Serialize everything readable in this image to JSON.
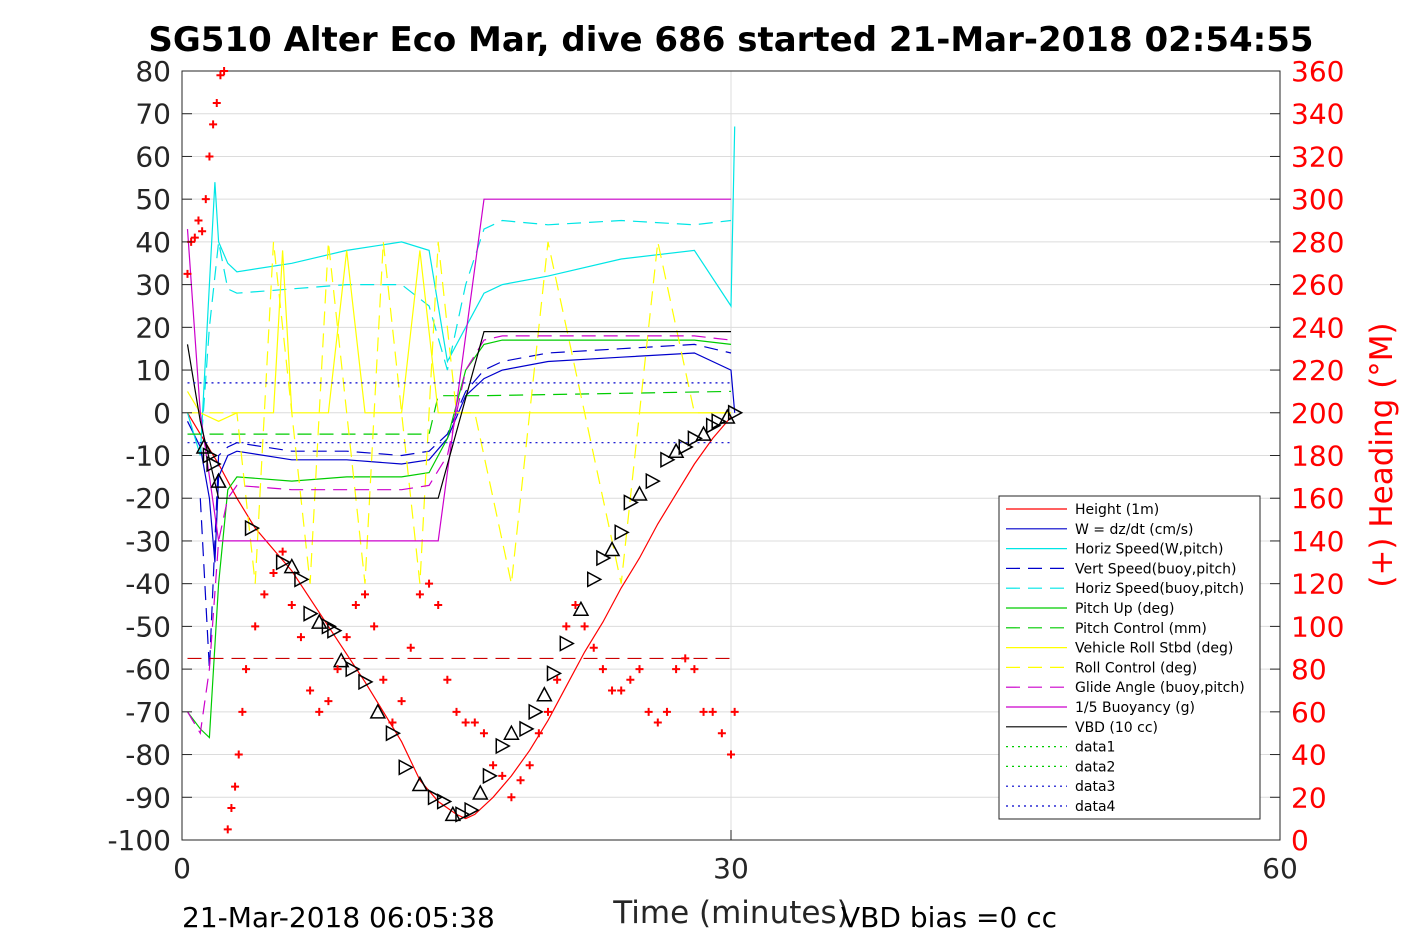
{
  "chart_data": {
    "type": "line",
    "title": "SG510 Alter Eco Mar, dive 686 started 21-Mar-2018 02:54:55",
    "xlabel": "Time (minutes)",
    "ylabel": "",
    "y2label": "(+) Heading (°M)",
    "xlim": [
      0,
      60
    ],
    "ylim": [
      -100,
      80
    ],
    "y2lim": [
      0,
      360
    ],
    "grid": true,
    "legend_position": "lower-right",
    "x_ticks": [
      "0",
      "30",
      "60"
    ],
    "y_ticks": [
      "80",
      "70",
      "60",
      "50",
      "40",
      "30",
      "20",
      "10",
      "0",
      "-10",
      "-20",
      "-30",
      "-40",
      "-50",
      "-60",
      "-70",
      "-80",
      "-90",
      "-100"
    ],
    "y2_ticks": [
      "360",
      "340",
      "320",
      "300",
      "280",
      "260",
      "240",
      "220",
      "200",
      "180",
      "160",
      "140",
      "120",
      "100",
      "80",
      "60",
      "40",
      "20",
      "0"
    ],
    "colors": {
      "height": "#ff0000",
      "w": "#0000cc",
      "horiz_w": "#00e6e6",
      "vert_buoy": "#0000cc",
      "horiz_buoy": "#00e6e6",
      "pitch": "#00cc00",
      "pitch_ctrl": "#00cc00",
      "roll": "#ffff00",
      "roll_ctrl": "#ffff00",
      "glide": "#cc00cc",
      "buoy": "#cc00cc",
      "vbd": "#000000",
      "heading": "#ff0000"
    },
    "series": [
      {
        "name": "Height (1m)",
        "x": [
          0.3,
          1,
          2,
          3,
          4,
          6,
          8,
          10,
          12,
          13,
          14,
          15,
          15.5,
          16,
          17,
          18,
          19,
          20,
          21,
          22,
          23,
          24,
          25,
          26,
          27,
          28,
          29,
          30
        ],
        "y": [
          0,
          -5,
          -12,
          -20,
          -27,
          -37,
          -50,
          -63,
          -77,
          -86,
          -91,
          -94,
          -95,
          -94,
          -90,
          -85,
          -79,
          -72,
          -64,
          -56,
          -49,
          -41,
          -34,
          -26,
          -19,
          -12,
          -6,
          -1
        ]
      },
      {
        "name": "W = dz/dt (cm/s)",
        "x": [
          0.3,
          1,
          1.5,
          1.8,
          2,
          2.5,
          3,
          6,
          9,
          12,
          13.5,
          14.5,
          15.5,
          16.5,
          17.5,
          20,
          24,
          28,
          30,
          30.2
        ],
        "y": [
          -2,
          -8,
          -20,
          -35,
          -15,
          -10,
          -9,
          -11,
          -11,
          -12,
          -11,
          -6,
          4,
          8,
          10,
          12,
          13,
          14,
          10,
          0
        ]
      },
      {
        "name": "Horiz Speed(W,pitch)",
        "x": [
          0.3,
          1,
          1.5,
          1.8,
          2,
          2.5,
          3,
          6,
          9,
          12,
          13.5,
          14.5,
          15.5,
          16.5,
          17.5,
          20,
          24,
          28,
          30,
          30.2
        ],
        "y": [
          0,
          -10,
          30,
          54,
          40,
          35,
          33,
          35,
          38,
          40,
          38,
          12,
          20,
          28,
          30,
          32,
          36,
          38,
          25,
          67
        ]
      },
      {
        "name": "Vert Speed(buoy,pitch)",
        "x": [
          1,
          1.5,
          2,
          2.5,
          3,
          6,
          9,
          12,
          13.5,
          14.5,
          15.5,
          16.5,
          17.5,
          20,
          24,
          28,
          30
        ],
        "y": [
          -20,
          -60,
          -10,
          -8,
          -7,
          -9,
          -9,
          -10,
          -9,
          -5,
          5,
          10,
          12,
          14,
          15,
          16,
          14
        ]
      },
      {
        "name": "Horiz Speed(buoy,pitch)",
        "x": [
          1,
          1.5,
          2,
          2.5,
          3,
          6,
          9,
          12,
          13.5,
          14.5,
          15.5,
          16.5,
          17.5,
          20,
          24,
          28,
          30
        ],
        "y": [
          -10,
          20,
          40,
          29,
          28,
          29,
          30,
          30,
          25,
          10,
          30,
          43,
          45,
          44,
          45,
          44,
          45
        ]
      },
      {
        "name": "Pitch Up (deg)",
        "x": [
          0.3,
          1,
          1.5,
          2,
          2.5,
          3,
          6,
          9,
          12,
          13.5,
          14.5,
          15.5,
          16.5,
          17.5,
          20,
          24,
          28,
          30
        ],
        "y": [
          -70,
          -74,
          -76,
          -40,
          -18,
          -15,
          -16,
          -15,
          -15,
          -14,
          -6,
          10,
          16,
          17,
          17,
          17,
          17,
          16
        ]
      },
      {
        "name": "Pitch Control (mm)",
        "x": [
          0.3,
          2,
          3,
          13,
          13.5,
          14,
          16.5,
          30
        ],
        "y": [
          -5,
          -5,
          -5,
          -5,
          -5,
          4,
          4,
          5
        ]
      },
      {
        "name": "Vehicle Roll Stbd (deg)",
        "x": [
          0.3,
          1,
          2,
          3,
          4,
          5,
          5.5,
          6,
          7,
          8,
          9,
          10,
          11,
          12,
          13,
          14,
          16,
          18,
          20,
          22,
          24,
          26,
          28,
          30
        ],
        "y": [
          5,
          0,
          -2,
          0,
          0,
          0,
          38,
          0,
          0,
          0,
          38,
          0,
          0,
          0,
          38,
          0,
          0,
          0,
          0,
          0,
          0,
          0,
          0,
          0
        ]
      },
      {
        "name": "Roll Control (deg)",
        "x": [
          0.3,
          2,
          3,
          4,
          5,
          6,
          7,
          8,
          9,
          10,
          11,
          12,
          13,
          14,
          15,
          16,
          18,
          20,
          22,
          24,
          26,
          28,
          30
        ],
        "y": [
          0,
          0,
          0,
          -40,
          40,
          0,
          -40,
          40,
          0,
          -40,
          40,
          0,
          -40,
          40,
          0,
          0,
          -40,
          40,
          0,
          -40,
          40,
          0,
          0
        ]
      },
      {
        "name": "Glide Angle (buoy,pitch)",
        "x": [
          0.3,
          1,
          1.5,
          2,
          2.5,
          3,
          6,
          9,
          12,
          13.5,
          14.5,
          15.5,
          16.5,
          17.5,
          20,
          24,
          28,
          30
        ],
        "y": [
          -70,
          -75,
          -60,
          -30,
          -20,
          -17,
          -18,
          -18,
          -18,
          -17,
          -10,
          10,
          17,
          18,
          18,
          18,
          18,
          17
        ]
      },
      {
        "name": "1/5 Buoyancy (g)",
        "x": [
          0.3,
          1,
          2,
          13.5,
          14,
          16.5,
          30
        ],
        "y": [
          43,
          0,
          -30,
          -30,
          -30,
          50,
          50
        ]
      },
      {
        "name": "VBD (10 cc)",
        "x": [
          0.3,
          1,
          2,
          13.5,
          14,
          16.5,
          30
        ],
        "y": [
          16,
          -2,
          -20,
          -20,
          -20,
          19,
          19
        ]
      },
      {
        "name": "data1",
        "x": [],
        "y": []
      },
      {
        "name": "data2",
        "x": [],
        "y": []
      },
      {
        "name": "data3",
        "x": [
          0.3,
          30
        ],
        "y": [
          7,
          7
        ]
      },
      {
        "name": "data4",
        "x": [
          0.3,
          30
        ],
        "y": [
          -7,
          -7
        ]
      }
    ],
    "heading_reference": {
      "y2": 85
    },
    "heading_points": {
      "x": [
        0.3,
        0.5,
        0.7,
        0.9,
        1.1,
        1.3,
        1.5,
        1.7,
        1.9,
        2.1,
        2.3,
        2.5,
        2.7,
        2.9,
        3.1,
        3.3,
        3.5,
        4,
        4.5,
        5,
        5.5,
        6,
        6.5,
        7,
        7.5,
        8,
        8.5,
        9,
        9.5,
        10,
        10.5,
        11,
        11.5,
        12,
        12.5,
        13,
        13.5,
        14,
        14.5,
        15,
        15.5,
        16,
        16.5,
        17,
        17.5,
        18,
        18.5,
        19,
        19.5,
        20,
        20.5,
        21,
        21.5,
        22,
        22.5,
        23,
        23.5,
        24,
        24.5,
        25,
        25.5,
        26,
        26.5,
        27,
        27.5,
        28,
        28.5,
        29,
        29.5,
        30,
        30.2
      ],
      "y2": [
        265,
        280,
        282,
        290,
        285,
        300,
        320,
        335,
        345,
        358,
        360,
        5,
        15,
        25,
        40,
        60,
        80,
        100,
        115,
        125,
        135,
        110,
        95,
        70,
        60,
        65,
        80,
        95,
        110,
        115,
        100,
        75,
        55,
        65,
        90,
        115,
        120,
        110,
        75,
        60,
        55,
        55,
        50,
        35,
        30,
        20,
        28,
        35,
        50,
        60,
        75,
        100,
        110,
        100,
        90,
        80,
        70,
        70,
        75,
        80,
        60,
        55,
        60,
        80,
        85,
        80,
        60,
        60,
        50,
        40,
        60
      ]
    },
    "vbd_marker_points": {
      "x": [
        1.2,
        1.5,
        1.7,
        2.0,
        3.8,
        5.5,
        6.0,
        6.5,
        7.0,
        7.5,
        8.0,
        8.3,
        8.7,
        9.3,
        10.0,
        10.7,
        11.5,
        12.2,
        13.0,
        13.8,
        14.3,
        14.8,
        15.3,
        15.8,
        16.3,
        16.8,
        17.5,
        18.0,
        18.8,
        19.3,
        19.8,
        20.3,
        21.0,
        21.8,
        22.5,
        23.0,
        23.5,
        24.0,
        24.5,
        25.0,
        25.7,
        26.5,
        27.0,
        27.5,
        28.0,
        28.5,
        29.0,
        29.3,
        29.8,
        30.2
      ],
      "y": [
        -8,
        -10,
        -12,
        -16,
        -27,
        -35,
        -36,
        -39,
        -47,
        -49,
        -50,
        -51,
        -58,
        -60,
        -63,
        -70,
        -75,
        -83,
        -87,
        -90,
        -91,
        -94,
        -94,
        -93,
        -89,
        -85,
        -78,
        -75,
        -74,
        -70,
        -66,
        -61,
        -54,
        -46,
        -39,
        -34,
        -32,
        -28,
        -21,
        -19,
        -16,
        -11,
        -9,
        -8,
        -6,
        -5,
        -3,
        -2,
        -1,
        0
      ]
    },
    "footer_left": "21-Mar-2018 06:05:38",
    "footer_right": "VBD bias =0 cc"
  }
}
